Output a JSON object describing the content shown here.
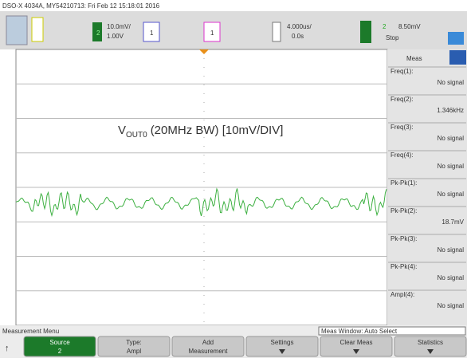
{
  "status_bar": {
    "text": "DSO-X 4034A, MY54210713: Fri Feb 12 15:18:01 2016"
  },
  "channel_bar": {
    "ch1_scale": "10.0mV/",
    "ch1_offset": "1.00V",
    "ch2_label": "2",
    "ch3_label": "1",
    "ch4_label": "1",
    "timebase": "4.000us/",
    "delay": "0.0s",
    "trigger_ch": "2",
    "trigger_level": "8.50mV",
    "acq_mode": "Stop"
  },
  "annotation": {
    "prefix": "V",
    "subscript": "OUT0",
    "suffix": "(20MHz BW) [10mV/DIV]"
  },
  "meas_panel": {
    "title": "Meas",
    "items": [
      {
        "label": "Freq(1):",
        "value": "No signal"
      },
      {
        "label": "Freq(2):",
        "value": "1.346kHz"
      },
      {
        "label": "Freq(3):",
        "value": "No signal"
      },
      {
        "label": "Freq(4):",
        "value": "No signal"
      },
      {
        "label": "Pk-Pk(1):",
        "value": "No signal"
      },
      {
        "label": "Pk-Pk(2):",
        "value": "18.7mV"
      },
      {
        "label": "Pk-Pk(3):",
        "value": "No signal"
      },
      {
        "label": "Pk-Pk(4):",
        "value": "No signal"
      },
      {
        "label": "Ampl(4):",
        "value": "No signal"
      }
    ]
  },
  "menu": {
    "title": "Measurement Menu",
    "window": "Meas Window: Auto Select",
    "softkeys": [
      {
        "label": "Source",
        "value": "2"
      },
      {
        "label": "Type:",
        "value": "Ampl"
      },
      {
        "label": "Add",
        "value": "Measurement"
      },
      {
        "label": "Settings",
        "value": ""
      },
      {
        "label": "Clear Meas",
        "value": ""
      },
      {
        "label": "Statistics",
        "value": ""
      }
    ]
  }
}
